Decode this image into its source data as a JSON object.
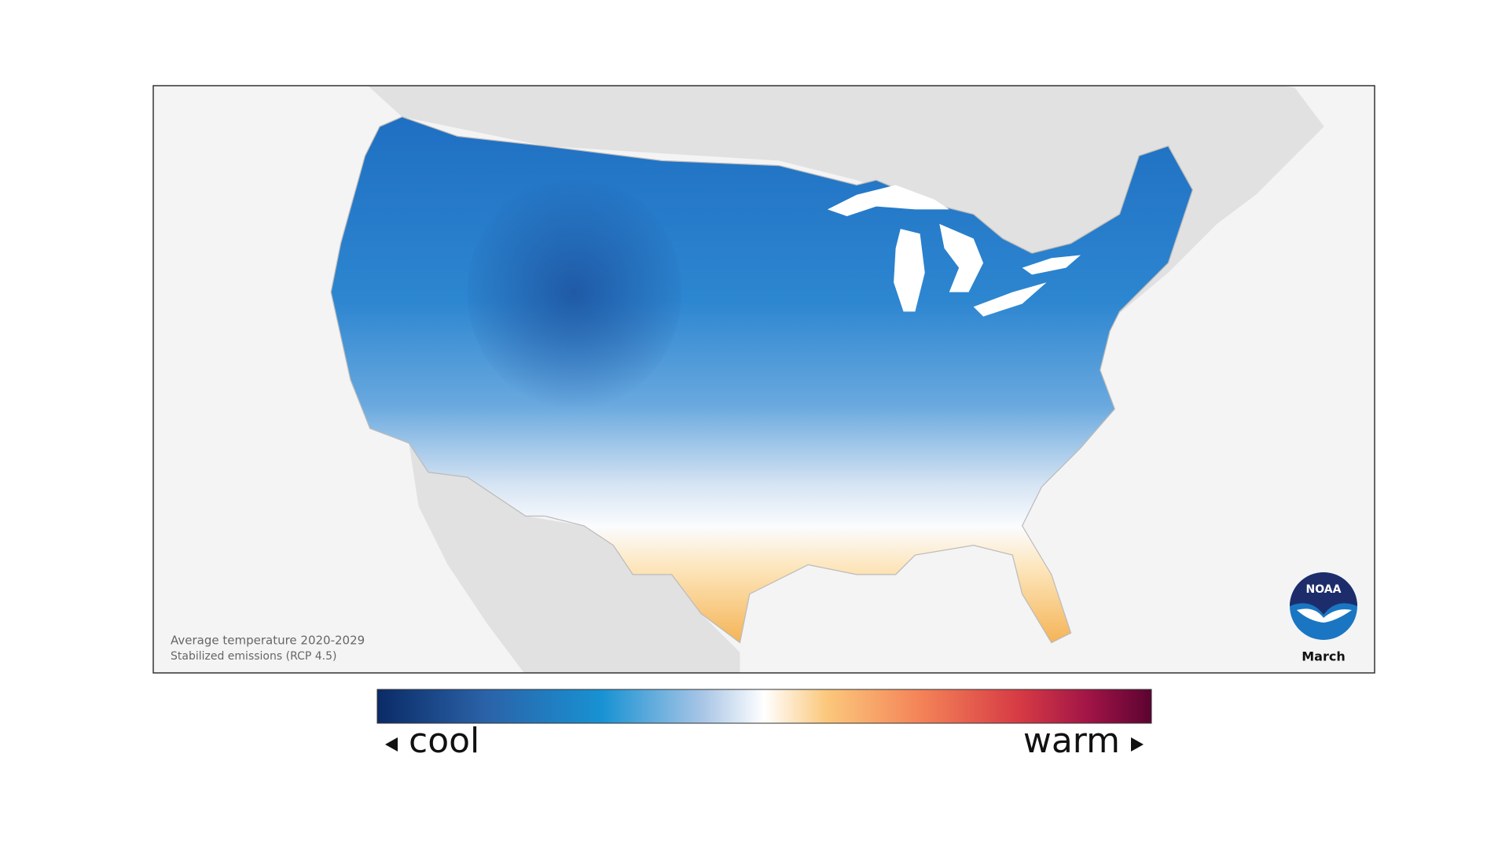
{
  "caption": {
    "title": "Average temperature 2020-2029",
    "subtitle": "Stabilized emissions (RCP 4.5)"
  },
  "logo": {
    "text": "NOAA"
  },
  "month": "March",
  "legend": {
    "low": "cool",
    "high": "warm"
  }
}
